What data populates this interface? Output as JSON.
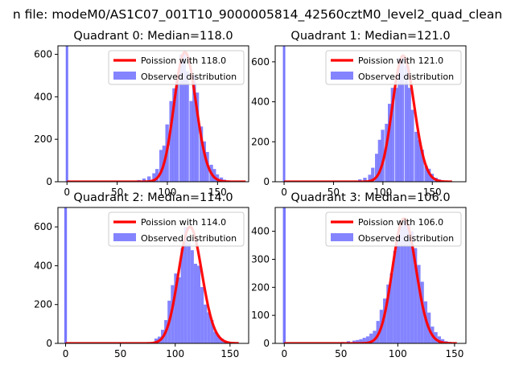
{
  "suptitle": "n file: modeM0/AS1C07_001T10_9000005814_42560cztM0_level2_quad_clean",
  "colors": {
    "hist": "#7777ff",
    "poisson": "#ff0000",
    "spike": "#7777ff"
  },
  "chart_data": [
    {
      "type": "bar",
      "title": "Quadrant 0: Median=118.0",
      "xlim": [
        -9,
        181
      ],
      "ylim": [
        0,
        640
      ],
      "xticks": [
        0,
        50,
        100,
        150
      ],
      "yticks": [
        0,
        200,
        400,
        600
      ],
      "legend": {
        "placement": "upper right",
        "entries": [
          "Poission with 118.0",
          "Observed distribution"
        ]
      },
      "poisson_lambda": 118.0,
      "poisson_x": [
        0,
        178
      ],
      "spike": {
        "x": 0,
        "height": 640
      },
      "bin_width": 3.5,
      "bins": [
        [
          65,
          3
        ],
        [
          70,
          8
        ],
        [
          75,
          15
        ],
        [
          80,
          25
        ],
        [
          85,
          40
        ],
        [
          88,
          60
        ],
        [
          92,
          150
        ],
        [
          95,
          170
        ],
        [
          98,
          270
        ],
        [
          102,
          380
        ],
        [
          105,
          440
        ],
        [
          108,
          480
        ],
        [
          112,
          600
        ],
        [
          115,
          610
        ],
        [
          118,
          520
        ],
        [
          122,
          380
        ],
        [
          125,
          500
        ],
        [
          128,
          420
        ],
        [
          132,
          260
        ],
        [
          135,
          190
        ],
        [
          138,
          140
        ],
        [
          142,
          80
        ],
        [
          145,
          60
        ],
        [
          148,
          35
        ],
        [
          152,
          20
        ],
        [
          155,
          10
        ],
        [
          158,
          5
        ]
      ]
    },
    {
      "type": "bar",
      "title": "Quadrant 1: Median=121.0",
      "xlim": [
        -9,
        184
      ],
      "ylim": [
        0,
        680
      ],
      "xticks": [
        0,
        50,
        100,
        150
      ],
      "yticks": [
        0,
        200,
        400,
        600
      ],
      "legend": {
        "placement": "upper right",
        "entries": [
          "Poission with 121.0",
          "Observed distribution"
        ]
      },
      "poisson_lambda": 121.0,
      "poisson_x": [
        0,
        170
      ],
      "spike": {
        "x": 0,
        "height": 680
      },
      "bin_width": 3.5,
      "bins": [
        [
          70,
          3
        ],
        [
          75,
          12
        ],
        [
          80,
          20
        ],
        [
          85,
          35
        ],
        [
          88,
          70
        ],
        [
          92,
          140
        ],
        [
          95,
          210
        ],
        [
          98,
          260
        ],
        [
          102,
          290
        ],
        [
          105,
          390
        ],
        [
          108,
          470
        ],
        [
          112,
          470
        ],
        [
          115,
          620
        ],
        [
          118,
          630
        ],
        [
          122,
          580
        ],
        [
          125,
          470
        ],
        [
          128,
          360
        ],
        [
          132,
          250
        ],
        [
          135,
          210
        ],
        [
          138,
          160
        ],
        [
          142,
          80
        ],
        [
          145,
          65
        ],
        [
          148,
          40
        ],
        [
          152,
          20
        ],
        [
          155,
          12
        ],
        [
          158,
          5
        ]
      ]
    },
    {
      "type": "bar",
      "title": "Quadrant 2: Median=114.0",
      "xlim": [
        -7,
        167
      ],
      "ylim": [
        0,
        700
      ],
      "xticks": [
        0,
        50,
        100,
        150
      ],
      "yticks": [
        0,
        200,
        400,
        600
      ],
      "legend": {
        "placement": "upper right",
        "entries": [
          "Poission with 114.0",
          "Observed distribution"
        ]
      },
      "poisson_lambda": 114.0,
      "poisson_x": [
        0,
        158
      ],
      "spike": {
        "x": 0,
        "height": 700
      },
      "bin_width": 3.0,
      "bins": [
        [
          78,
          8
        ],
        [
          81,
          25
        ],
        [
          84,
          35
        ],
        [
          87,
          70
        ],
        [
          90,
          120
        ],
        [
          93,
          220
        ],
        [
          96,
          300
        ],
        [
          99,
          360
        ],
        [
          102,
          340
        ],
        [
          105,
          490
        ],
        [
          108,
          600
        ],
        [
          111,
          520
        ],
        [
          114,
          480
        ],
        [
          117,
          410
        ],
        [
          120,
          400
        ],
        [
          123,
          290
        ],
        [
          126,
          200
        ],
        [
          129,
          160
        ],
        [
          132,
          120
        ],
        [
          135,
          60
        ],
        [
          138,
          40
        ],
        [
          141,
          25
        ],
        [
          144,
          12
        ],
        [
          147,
          5
        ]
      ]
    },
    {
      "type": "bar",
      "title": "Quadrant 3: Median=106.0",
      "xlim": [
        -8,
        160
      ],
      "ylim": [
        0,
        485
      ],
      "xticks": [
        0,
        50,
        100,
        150
      ],
      "yticks": [
        0,
        100,
        200,
        300,
        400
      ],
      "legend": {
        "placement": "upper right",
        "entries": [
          "Poission with 106.0",
          "Observed distribution"
        ]
      },
      "poisson_lambda": 106.0,
      "poisson_x": [
        0,
        152
      ],
      "spike": {
        "x": 0,
        "height": 485
      },
      "bin_width": 3.0,
      "bins": [
        [
          45,
          3
        ],
        [
          50,
          5
        ],
        [
          55,
          8
        ],
        [
          60,
          10
        ],
        [
          63,
          12
        ],
        [
          66,
          15
        ],
        [
          69,
          20
        ],
        [
          72,
          25
        ],
        [
          75,
          35
        ],
        [
          78,
          45
        ],
        [
          81,
          80
        ],
        [
          84,
          120
        ],
        [
          87,
          160
        ],
        [
          90,
          210
        ],
        [
          93,
          250
        ],
        [
          96,
          330
        ],
        [
          99,
          390
        ],
        [
          102,
          420
        ],
        [
          105,
          445
        ],
        [
          108,
          430
        ],
        [
          111,
          400
        ],
        [
          114,
          340
        ],
        [
          117,
          280
        ],
        [
          120,
          220
        ],
        [
          123,
          150
        ],
        [
          126,
          110
        ],
        [
          129,
          60
        ],
        [
          132,
          40
        ],
        [
          135,
          25
        ],
        [
          138,
          15
        ],
        [
          141,
          8
        ],
        [
          144,
          5
        ]
      ]
    }
  ]
}
